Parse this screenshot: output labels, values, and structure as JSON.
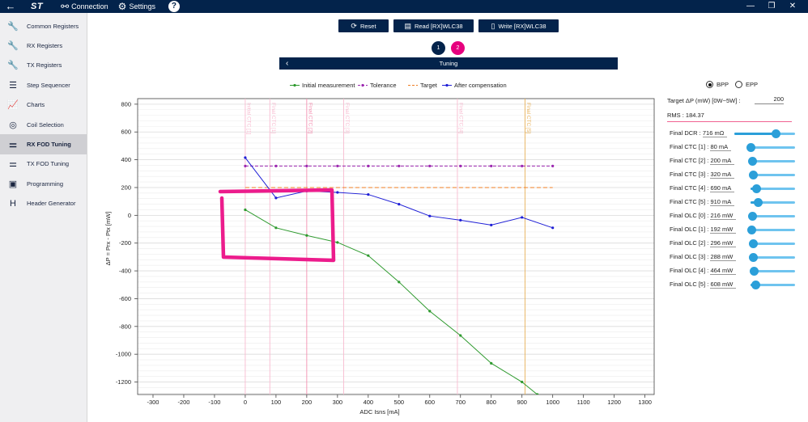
{
  "titlebar": {
    "back": "←",
    "logo": "ST",
    "connection": "Connection",
    "settings": "Settings",
    "help": "?",
    "min": "—",
    "restore": "❐",
    "close": "✕"
  },
  "sidebar": {
    "items": [
      {
        "label": "Common Registers",
        "icon": "wrench-icon",
        "glyph": "🔧"
      },
      {
        "label": "RX Registers",
        "icon": "wrench-icon",
        "glyph": "🔧"
      },
      {
        "label": "TX Registers",
        "icon": "wrench-icon",
        "glyph": "🔧"
      },
      {
        "label": "Step Sequencer",
        "icon": "list-icon",
        "glyph": "☰"
      },
      {
        "label": "Charts",
        "icon": "chart-icon",
        "glyph": "📈"
      },
      {
        "label": "Coil Selection",
        "icon": "coil-icon",
        "glyph": "◎"
      },
      {
        "label": "RX FOD Tuning",
        "icon": "sliders-icon",
        "glyph": "⚌"
      },
      {
        "label": "TX FOD Tuning",
        "icon": "sliders-icon",
        "glyph": "⚌"
      },
      {
        "label": "Programming",
        "icon": "chip-icon",
        "glyph": "▣"
      },
      {
        "label": "Header Generator",
        "icon": "header-icon",
        "glyph": "H"
      }
    ]
  },
  "toolbar": {
    "reset": "Reset",
    "read": "Read [RX]WLC38",
    "write": "Write [RX]WLC38"
  },
  "steps": {
    "one": "1",
    "two": "2",
    "title": "Tuning"
  },
  "colors": {
    "navy": "#03234b",
    "step_active": "#e6007e",
    "initial": "#2e9a2e",
    "tolerance": "#9c27b0",
    "target": "#ef7d22",
    "after": "#1f1fd6",
    "annotation": "#ec1c8c"
  },
  "chart_data": {
    "type": "line",
    "xlabel": "ADC Isns [mA]",
    "ylabel": "ΔP = Prx - Ptx [mW]",
    "xlim": [
      -350,
      1330
    ],
    "ylim": [
      -1290,
      840
    ],
    "xticks": [
      -300,
      -200,
      -100,
      0,
      100,
      200,
      300,
      400,
      500,
      600,
      700,
      800,
      900,
      1000,
      1100,
      1200,
      1300
    ],
    "yticks": [
      800,
      600,
      400,
      200,
      0,
      -200,
      -400,
      -600,
      -800,
      -1000,
      -1200
    ],
    "grid": true,
    "legend_position": "top",
    "series": [
      {
        "name": "Initial measurement",
        "x": [
          0,
          100,
          200,
          300,
          400,
          500,
          600,
          700,
          800,
          900,
          950
        ],
        "y": [
          40,
          -90,
          -145,
          -195,
          -290,
          -480,
          -690,
          -865,
          -1065,
          -1200,
          -1290
        ]
      },
      {
        "name": "Tolerance",
        "x": [
          0,
          100,
          200,
          300,
          400,
          500,
          600,
          700,
          800,
          900,
          1000
        ],
        "y": [
          355,
          355,
          355,
          355,
          355,
          355,
          355,
          355,
          355,
          355,
          355
        ]
      },
      {
        "name": "Target",
        "x": [
          0,
          1000
        ],
        "y": [
          200,
          200
        ]
      },
      {
        "name": "After compensation",
        "x": [
          0,
          100,
          200,
          300,
          400,
          500,
          600,
          700,
          800,
          900,
          1000
        ],
        "y": [
          415,
          125,
          175,
          165,
          150,
          80,
          -5,
          -35,
          -70,
          -15,
          -90
        ]
      }
    ],
    "vlines": [
      {
        "label": "Initial CTC [1]",
        "x": 0,
        "color": "#f8bbd0"
      },
      {
        "label": "Final CTC [1]",
        "x": 80,
        "color": "#f8bbd0"
      },
      {
        "label": "Final CTC [2]",
        "x": 200,
        "color": "#f48fb1"
      },
      {
        "label": "Final CTC [3]",
        "x": 320,
        "color": "#f8bbd0"
      },
      {
        "label": "Final CTC [4]",
        "x": 690,
        "color": "#f8bbd0"
      },
      {
        "label": "Final CTC [5]",
        "x": 910,
        "color": "#e8b25a"
      }
    ]
  },
  "panel": {
    "bpp": "BPP",
    "epp": "EPP",
    "target_label": "Target ΔP (mW) [0W~5W] :",
    "target_value": "200",
    "rms": "RMS : 184.37",
    "sliders": [
      {
        "label": "Final DCR :",
        "value": "716 mΩ",
        "level": 0.68
      },
      {
        "label": "Final CTC [1] :",
        "value": "80 mA",
        "level": 0.0
      },
      {
        "label": "Final CTC [2] :",
        "value": "200 mA",
        "level": 0.04
      },
      {
        "label": "Final CTC [3] :",
        "value": "320 mA",
        "level": 0.06
      },
      {
        "label": "Final CTC [4] :",
        "value": "690 mA",
        "level": 0.13
      },
      {
        "label": "Final CTC [5] :",
        "value": "910 mA",
        "level": 0.17
      },
      {
        "label": "Final OLC [0] :",
        "value": "216 mW",
        "level": 0.04
      },
      {
        "label": "Final OLC [1] :",
        "value": "192 mW",
        "level": 0.03
      },
      {
        "label": "Final OLC [2] :",
        "value": "296 mW",
        "level": 0.06
      },
      {
        "label": "Final OLC [3] :",
        "value": "288 mW",
        "level": 0.06
      },
      {
        "label": "Final OLC [4] :",
        "value": "464 mW",
        "level": 0.09
      },
      {
        "label": "Final OLC [5] :",
        "value": "608 mW",
        "level": 0.12
      }
    ]
  }
}
